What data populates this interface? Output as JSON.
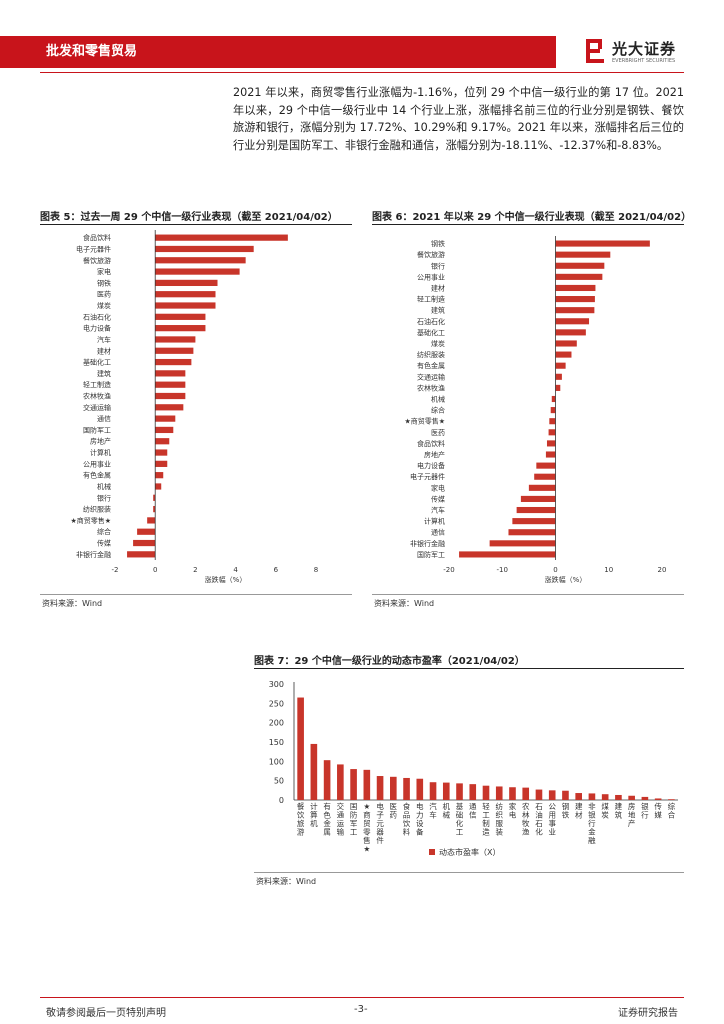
{
  "header": {
    "section": "批发和零售贸易",
    "brand": "光大证券",
    "brand_en": "EVERBRIGHT SECURITIES"
  },
  "body_text": "2021 年以来，商贸零售行业涨幅为-1.16%，位列 29 个中信一级行业的第 17 位。2021 年以来，29 个中信一级行业中 14 个行业上涨，涨幅排名前三位的行业分别是钢铁、餐饮旅游和银行，涨幅分别为 17.72%、10.29%和 9.17%。2021 年以来，涨幅排名后三位的行业分别是国防军工、非银行金融和通信，涨幅分别为-18.11%、-12.37%和-8.83%。",
  "figures": {
    "fig5_title": "图表 5：过去一周 29 个中信一级行业表现（截至 2021/04/02）",
    "fig6_title": "图表 6：2021 年以来 29 个中信一级行业表现（截至 2021/04/02）",
    "fig7_title": "图表 7：29 个中信一级行业的动态市盈率（2021/04/02）",
    "source": "资料来源：Wind"
  },
  "footer": {
    "left": "敬请参阅最后一页特别声明",
    "page": "-3-",
    "right": "证券研究报告"
  },
  "colors": {
    "accent": "#c8141b",
    "bar": "#c8352a"
  },
  "chart_data": [
    {
      "type": "bar",
      "orientation": "horizontal",
      "xlabel": "涨跌幅（%）",
      "xlim": [
        -2,
        8
      ],
      "xticks": [
        -2,
        0,
        2,
        4,
        6,
        8
      ],
      "categories": [
        "食品饮料",
        "电子元器件",
        "餐饮旅游",
        "家电",
        "钢铁",
        "医药",
        "煤炭",
        "石油石化",
        "电力设备",
        "汽车",
        "建材",
        "基础化工",
        "建筑",
        "轻工制造",
        "农林牧渔",
        "交通运输",
        "通信",
        "国防军工",
        "房地产",
        "计算机",
        "公用事业",
        "有色金属",
        "机械",
        "银行",
        "纺织服装",
        "★商贸零售★",
        "综合",
        "传媒",
        "非银行金融"
      ],
      "values": [
        6.6,
        4.9,
        4.5,
        4.2,
        3.1,
        3.0,
        3.0,
        2.5,
        2.5,
        2.0,
        1.9,
        1.8,
        1.5,
        1.5,
        1.5,
        1.4,
        1.0,
        0.9,
        0.7,
        0.6,
        0.6,
        0.4,
        0.3,
        -0.1,
        -0.1,
        -0.4,
        -0.9,
        -1.1,
        -1.4
      ]
    },
    {
      "type": "bar",
      "orientation": "horizontal",
      "xlabel": "涨跌幅（%）",
      "xlim": [
        -20,
        20
      ],
      "xticks": [
        -20,
        -10,
        0,
        10,
        20
      ],
      "categories": [
        "钢铁",
        "餐饮旅游",
        "银行",
        "公用事业",
        "建材",
        "轻工制造",
        "建筑",
        "石油石化",
        "基础化工",
        "煤炭",
        "纺织服装",
        "有色金属",
        "交通运输",
        "农林牧渔",
        "机械",
        "综合",
        "★商贸零售★",
        "医药",
        "食品饮料",
        "房地产",
        "电力设备",
        "电子元器件",
        "家电",
        "传媒",
        "汽车",
        "计算机",
        "通信",
        "非银行金融",
        "国防军工"
      ],
      "values": [
        17.72,
        10.29,
        9.17,
        8.8,
        7.5,
        7.4,
        7.3,
        6.3,
        5.7,
        4.0,
        3.0,
        1.9,
        1.2,
        0.9,
        -0.7,
        -0.9,
        -1.16,
        -1.3,
        -1.6,
        -1.8,
        -3.6,
        -4.0,
        -5.0,
        -6.5,
        -7.3,
        -8.1,
        -8.83,
        -12.37,
        -18.11
      ]
    },
    {
      "type": "bar",
      "orientation": "vertical",
      "ylim": [
        0,
        300
      ],
      "yticks": [
        0,
        50,
        100,
        150,
        200,
        250,
        300
      ],
      "legend": "动态市盈率（X）",
      "legend_position": "bottom",
      "categories": [
        "餐饮旅游",
        "计算机",
        "有色金属",
        "交通运输",
        "国防军工",
        "★商贸零售★",
        "电子元器件",
        "医药",
        "食品饮料",
        "电力设备",
        "汽车",
        "机械",
        "基础化工",
        "通信",
        "轻工制造",
        "纺织服装",
        "家电",
        "农林牧渔",
        "石油石化",
        "公用事业",
        "钢铁",
        "建材",
        "非银行金融",
        "煤炭",
        "建筑",
        "房地产",
        "银行",
        "传媒",
        "综合"
      ],
      "values": [
        265,
        145,
        103,
        92,
        80,
        78,
        62,
        60,
        57,
        55,
        46,
        45,
        43,
        41,
        37,
        35,
        33,
        32,
        27,
        25,
        24,
        18,
        17,
        15,
        13,
        11,
        8,
        4,
        2
      ]
    }
  ]
}
